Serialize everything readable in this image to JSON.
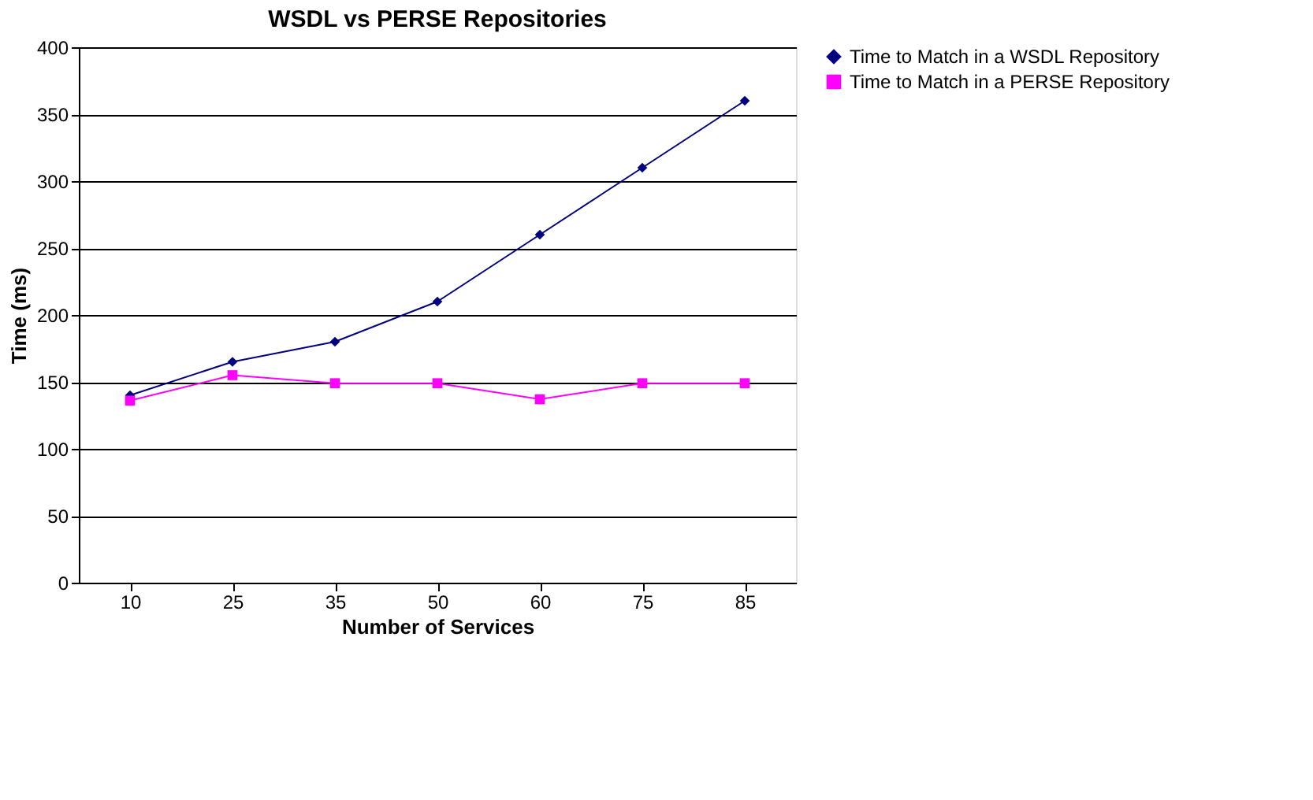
{
  "chart_data": {
    "type": "line",
    "title": "WSDL vs PERSE Repositories",
    "xlabel": "Number of Services",
    "ylabel": "Time (ms)",
    "categories": [
      "10",
      "25",
      "35",
      "50",
      "60",
      "75",
      "85"
    ],
    "series": [
      {
        "name": "Time to Match in a WSDL Repository",
        "color": "#000080",
        "marker": "diamond",
        "values": [
          140,
          165,
          180,
          210,
          260,
          310,
          360
        ]
      },
      {
        "name": "Time to Match in a PERSE Repository",
        "color": "#ff00ff",
        "marker": "square",
        "values": [
          136,
          155,
          149,
          149,
          137,
          149,
          149
        ]
      }
    ],
    "ylim": [
      0,
      400
    ],
    "yticks": [
      0,
      50,
      100,
      150,
      200,
      250,
      300,
      350,
      400
    ],
    "grid": "y",
    "legend": "right"
  }
}
